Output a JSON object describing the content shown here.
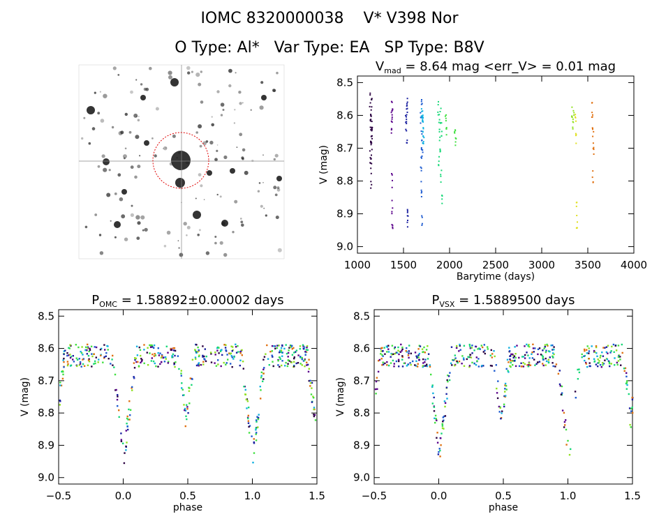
{
  "header": {
    "line1": "IOMC 8320000038    V* V398 Nor",
    "line2": "O Type: Al*   Var Type: EA   SP Type: B8V"
  },
  "image_panel": {
    "type": "image",
    "description_labels": []
  },
  "chart_data": [
    {
      "id": "lightcurve",
      "type": "scatter",
      "title_parts": [
        "V",
        "mad",
        " = 8.64 mag <err_V> = 0.01 mag"
      ],
      "xlabel": "Barytime (days)",
      "ylabel": "V (mag)",
      "xlim": [
        1000,
        4000
      ],
      "ylim": [
        9.02,
        8.48
      ],
      "xticks": [
        1000,
        1500,
        2000,
        2500,
        3000,
        3500,
        4000
      ],
      "xtick_labels": [
        "1000",
        "1500",
        "2000",
        "2500",
        "3000",
        "3500",
        "4000"
      ],
      "yticks": [
        8.5,
        8.6,
        8.7,
        8.8,
        8.9,
        9.0
      ],
      "ytick_labels": [
        "8.5",
        "8.6",
        "8.7",
        "8.8",
        "8.9",
        "9.0"
      ],
      "series": [
        {
          "color": "#2a0040",
          "x": [
            1130,
            1135,
            1140,
            1145,
            1150,
            1133,
            1138,
            1143,
            1148,
            1152,
            1136,
            1141,
            1146
          ],
          "y": [
            8.55,
            8.62,
            8.66,
            8.7,
            8.63,
            8.72,
            8.58,
            8.8,
            8.68,
            8.64,
            8.61,
            8.74,
            8.57
          ]
        },
        {
          "color": "#5a008a",
          "x": [
            1365,
            1368,
            1370,
            1372,
            1366,
            1369,
            1371
          ],
          "y": [
            8.58,
            8.62,
            8.88,
            8.93,
            8.64,
            8.8,
            8.6
          ]
        },
        {
          "color": "#1a20a0",
          "x": [
            1520,
            1525,
            1530,
            1535,
            1540,
            1528,
            1533
          ],
          "y": [
            8.62,
            8.6,
            8.58,
            8.9,
            8.92,
            8.66,
            8.56
          ]
        },
        {
          "color": "#1c5ad0",
          "x": [
            1680,
            1685,
            1690,
            1695,
            1683,
            1688,
            1692,
            1697
          ],
          "y": [
            8.6,
            8.72,
            8.85,
            8.92,
            8.78,
            8.65,
            8.55,
            8.7
          ]
        },
        {
          "color": "#10b0e0",
          "x": [
            1690,
            1700,
            1705,
            1710,
            1698,
            1703
          ],
          "y": [
            8.58,
            8.62,
            8.66,
            8.68,
            8.6,
            8.64
          ]
        },
        {
          "color": "#18d878",
          "x": [
            1870,
            1880,
            1890,
            1900,
            1910,
            1885,
            1895,
            1905,
            1875
          ],
          "y": [
            8.58,
            8.62,
            8.7,
            8.78,
            8.85,
            8.66,
            8.6,
            8.64,
            8.74
          ]
        },
        {
          "color": "#40e040",
          "x": [
            1950,
            1960,
            2050,
            2060
          ],
          "y": [
            8.62,
            8.66,
            8.64,
            8.68
          ]
        },
        {
          "color": "#90e020",
          "x": [
            3320,
            3330,
            3340
          ],
          "y": [
            8.58,
            8.62,
            8.6
          ]
        },
        {
          "color": "#e0e020",
          "x": [
            3360,
            3365,
            3370,
            3375
          ],
          "y": [
            8.6,
            8.66,
            8.88,
            8.92
          ]
        },
        {
          "color": "#e07010",
          "x": [
            3540,
            3545,
            3550,
            3555,
            3548
          ],
          "y": [
            8.58,
            8.62,
            8.66,
            8.72,
            8.78
          ]
        }
      ]
    },
    {
      "id": "phase_omc",
      "type": "scatter",
      "title_parts": [
        "P",
        "OMC",
        " = 1.58892±0.00002 days"
      ],
      "xlabel": "phase",
      "ylabel": "V (mag)",
      "xlim": [
        -0.5,
        1.5
      ],
      "ylim": [
        9.02,
        8.48
      ],
      "xticks": [
        -0.5,
        0.0,
        0.5,
        1.0,
        1.5
      ],
      "xtick_labels": [
        "−0.5",
        "0.0",
        "0.5",
        "1.0",
        "1.5"
      ],
      "yticks": [
        8.5,
        8.6,
        8.7,
        8.8,
        8.9,
        9.0
      ],
      "ytick_labels": [
        "8.5",
        "8.6",
        "8.7",
        "8.8",
        "8.9",
        "9.0"
      ],
      "eclipse_model": {
        "primary_phase": 0.0,
        "primary_depth": 8.93,
        "secondary_phase": 0.48,
        "secondary_depth": 8.82,
        "baseline": 8.62
      }
    },
    {
      "id": "phase_vsx",
      "type": "scatter",
      "title_parts": [
        "P",
        "VSX",
        " = 1.5889500 days"
      ],
      "xlabel": "phase",
      "ylabel": "V (mag)",
      "xlim": [
        -0.5,
        1.5
      ],
      "ylim": [
        9.02,
        8.48
      ],
      "xticks": [
        -0.5,
        0.0,
        0.5,
        1.0,
        1.5
      ],
      "xtick_labels": [
        "−0.5",
        "0.0",
        "0.5",
        "1.0",
        "1.5"
      ],
      "yticks": [
        8.5,
        8.6,
        8.7,
        8.8,
        8.9,
        9.0
      ],
      "ytick_labels": [
        "8.5",
        "8.6",
        "8.7",
        "8.8",
        "8.9",
        "9.0"
      ],
      "eclipse_model": {
        "primary_phase": 0.0,
        "primary_depth": 8.93,
        "secondary_phase": 0.48,
        "secondary_depth": 8.82,
        "baseline": 8.62
      }
    }
  ],
  "palette": [
    "#2a0040",
    "#5a008a",
    "#1a20a0",
    "#1c5ad0",
    "#10b0e0",
    "#18d878",
    "#40e040",
    "#90e020",
    "#e07010"
  ]
}
